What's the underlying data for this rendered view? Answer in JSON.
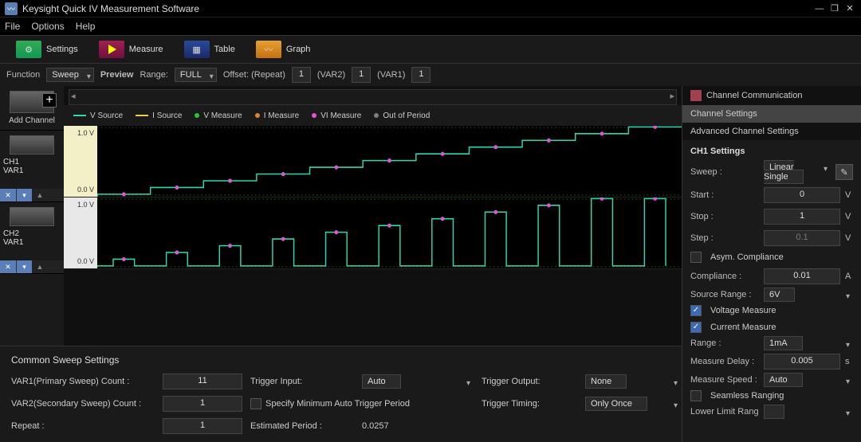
{
  "app": {
    "title": "Keysight Quick IV Measurement Software"
  },
  "menu": {
    "file": "File",
    "options": "Options",
    "help": "Help"
  },
  "toolbar": {
    "settings": "Settings",
    "measure": "Measure",
    "table": "Table",
    "graph": "Graph"
  },
  "funcbar": {
    "function_label": "Function",
    "function_value": "Sweep",
    "preview_label": "Preview",
    "range_label": "Range:",
    "range_value": "FULL",
    "offset_label": "Offset: (Repeat)",
    "offset_repeat": "1",
    "var2_label": "(VAR2)",
    "var2_val": "1",
    "var1_label": "(VAR1)",
    "var1_val": "1"
  },
  "addchannel_label": "Add Channel",
  "channels": [
    {
      "name": "CH1",
      "var": "VAR1",
      "ymax": "1.0 V",
      "ymin": "0.0 V",
      "axisClass": ""
    },
    {
      "name": "CH2",
      "var": "VAR1",
      "ymax": "1.0 V",
      "ymin": "0.0 V",
      "axisClass": "white"
    }
  ],
  "legend": {
    "vsource": {
      "label": "V Source",
      "color": "#2dd7b0"
    },
    "isource": {
      "label": "I Source",
      "color": "#e6d050"
    },
    "vmeasure": {
      "label": "V Measure",
      "color": "#30c040"
    },
    "imeasure": {
      "label": "I Measure",
      "color": "#e08030"
    },
    "vimeasure": {
      "label": "VI Measure",
      "color": "#e055d0"
    },
    "outperiod": {
      "label": "Out of Period",
      "color": "#808080"
    }
  },
  "chart": {
    "type": "line-step",
    "steps": 11,
    "series1": {
      "color": "#2dd7b0",
      "values": [
        0.0,
        0.1,
        0.2,
        0.3,
        0.4,
        0.5,
        0.6,
        0.7,
        0.8,
        0.9,
        1.0
      ]
    },
    "series2": {
      "color": "#2dd7b0",
      "pulse_w": 0.4,
      "pulse_heights": [
        0.1,
        0.2,
        0.3,
        0.4,
        0.5,
        0.6,
        0.7,
        0.8,
        0.9,
        1.0,
        1.0
      ]
    },
    "marker_color": "#e055d0",
    "grid_color": "#1a3a1a",
    "background": "#000000"
  },
  "common": {
    "title": "Common Sweep Settings",
    "var1count_label": "VAR1(Primary Sweep) Count :",
    "var1count": "11",
    "var2count_label": "VAR2(Secondary Sweep) Count :",
    "var2count": "1",
    "repeat_label": "Repeat :",
    "repeat": "1",
    "trigin_label": "Trigger Input:",
    "trigin": "Auto",
    "spec_min_label": "Specify Minimum Auto Trigger Period",
    "est_label": "Estimated Period :",
    "est_val": "0.0257",
    "trigout_label": "Trigger Output:",
    "trigout": "None",
    "trigtime_label": "Trigger Timing:",
    "trigtime": "Only Once"
  },
  "rpanel": {
    "tab1": "Channel Communication",
    "tab2": "Channel Settings",
    "tab3": "Advanced Channel Settings",
    "heading": "CH1 Settings",
    "sweep_label": "Sweep :",
    "sweep_val": "Linear Single",
    "start_label": "Start :",
    "start_val": "0",
    "start_unit": "V",
    "stop_label": "Stop :",
    "stop_val": "1",
    "stop_unit": "V",
    "step_label": "Step :",
    "step_val": "0.1",
    "step_unit": "V",
    "asym_label": "Asym. Compliance",
    "comp_label": "Compliance :",
    "comp_val": "0.01",
    "comp_unit": "A",
    "srange_label": "Source Range :",
    "srange_val": "6V",
    "vmeas_label": "Voltage Measure",
    "imeas_label": "Current Measure",
    "range_label": "Range :",
    "range_val": "1mA",
    "mdelay_label": "Measure Delay :",
    "mdelay_val": "0.005",
    "mdelay_unit": "s",
    "mspeed_label": "Measure Speed :",
    "mspeed_val": "Auto",
    "seamless_label": "Seamless Ranging",
    "llr_label": "Lower Limit Rang"
  }
}
